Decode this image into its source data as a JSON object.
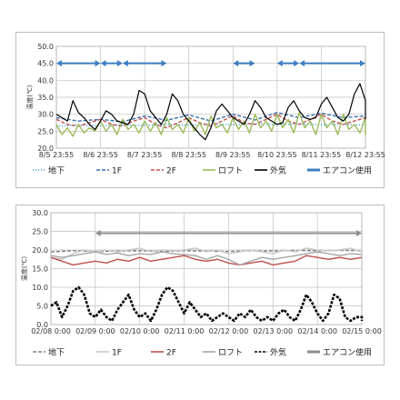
{
  "chart_data": [
    {
      "type": "line",
      "ylabel": "温度(℃)",
      "ylim": [
        20.0,
        50.0
      ],
      "yticks": [
        "50.0",
        "45.0",
        "40.0",
        "35.0",
        "30.0",
        "25.0",
        "20.0"
      ],
      "xticks": [
        "8/5 23:55",
        "8/6 23:55",
        "8/7 23:55",
        "8/8 23:55",
        "8/9 23:55",
        "8/10 23:55",
        "8/11 23:55",
        "8/12 23:55"
      ],
      "grid": true,
      "legend_position": "bottom",
      "legend": [
        "地下",
        "1F",
        "2F",
        "ロフト",
        "外気",
        "エアコン使用"
      ],
      "x_days_start": "8/5 23:55",
      "series": [
        {
          "name": "地下",
          "color": "#4aa8d8",
          "style": "dotted",
          "step_days": 0.5,
          "values": [
            26.5,
            26.8,
            26.6,
            26.9,
            26.7,
            27.0,
            26.8,
            27.1,
            26.9,
            27.2,
            27.0,
            27.1,
            26.9,
            27.0,
            26.8
          ]
        },
        {
          "name": "1F",
          "color": "#3a6fb0",
          "style": "dashed",
          "step_days": 0.5,
          "values": [
            29.0,
            28.0,
            28.5,
            27.8,
            29.5,
            28.2,
            29.8,
            28.0,
            30.0,
            28.3,
            30.5,
            29.0,
            30.3,
            29.0,
            29.5
          ]
        },
        {
          "name": "2F",
          "color": "#c0504d",
          "style": "dashed",
          "step_days": 0.25,
          "values": [
            28.5,
            27.0,
            26.5,
            27.5,
            28.5,
            27.0,
            26.5,
            28.0,
            29.0,
            27.0,
            26.0,
            27.5,
            29.0,
            27.5,
            26.5,
            28.0,
            29.5,
            27.5,
            27.0,
            28.5,
            30.0,
            28.0,
            27.0,
            28.5,
            30.0,
            28.0,
            27.0,
            28.0,
            29.0
          ]
        },
        {
          "name": "ロフト",
          "color": "#9bbb59",
          "style": "solid",
          "step_days": 0.125,
          "values": [
            27,
            24,
            26,
            23.5,
            27,
            24.5,
            26,
            25,
            28,
            25,
            27,
            24,
            28.5,
            25.5,
            27,
            24.5,
            28,
            25,
            27.5,
            24,
            29,
            25.5,
            27,
            24.5,
            29,
            25,
            27.5,
            24,
            29.5,
            26,
            27,
            24.5,
            29,
            25.5,
            28,
            24.5,
            30,
            26,
            28,
            25,
            30,
            26,
            28.5,
            24.5,
            30.5,
            26,
            28,
            24,
            30,
            26,
            28,
            24,
            30,
            25.5,
            27,
            24.5,
            29,
            24,
            26
          ]
        },
        {
          "name": "外気",
          "color": "#000000",
          "style": "solid",
          "step_days": 0.125,
          "values": [
            30,
            29,
            28,
            34,
            30.5,
            29,
            27,
            25.5,
            28,
            31,
            30,
            28,
            27.5,
            27,
            30,
            37,
            36,
            31,
            29,
            27,
            30,
            36,
            34,
            30,
            28,
            26,
            24,
            22.5,
            26,
            31,
            33,
            31,
            29,
            28,
            27,
            30,
            34,
            32,
            29,
            28,
            27,
            27.5,
            32,
            34,
            31,
            29,
            28.5,
            29,
            33,
            35,
            32,
            29,
            28,
            30,
            36,
            39,
            34,
            31,
            28.5
          ]
        }
      ],
      "aircon_segments": [
        [
          "8/5 23:55",
          "8/6 23:55"
        ],
        [
          "8/6 23:55",
          "8/7 11:55"
        ],
        [
          "8/7 11:55",
          "8/8 11:55"
        ],
        [
          "8/9 23:55",
          "8/10 11:55"
        ],
        [
          "8/10 23:55",
          "8/11 11:55"
        ],
        [
          "8/11 11:55",
          "8/13 00:00"
        ]
      ],
      "aircon_color": "#3c7fc0",
      "aircon_level": 45
    },
    {
      "type": "line",
      "ylabel": "温度(℃)",
      "ylim": [
        0.0,
        30.0
      ],
      "yticks": [
        "30.0",
        "25.0",
        "20.0",
        "15.0",
        "10.0",
        "5.0",
        "0.0"
      ],
      "xticks": [
        "02/08 0:00",
        "02/09 0:00",
        "02/10 0:00",
        "02/11 0:00",
        "02/12 0:00",
        "02/13 0:00",
        "02/14 0:00",
        "02/15 0:00"
      ],
      "grid": true,
      "legend_position": "bottom",
      "legend": [
        "地下",
        "1F",
        "2F",
        "ロフト",
        "外気",
        "エアコン使用"
      ],
      "series": [
        {
          "name": "地下",
          "color": "#808080",
          "style": "dashed",
          "step_days": 0.5,
          "values": [
            19.5,
            19.8,
            19.6,
            19.7,
            19.8,
            19.6,
            19.8,
            19.7,
            19.6,
            19.8,
            19.7,
            19.9,
            19.8,
            19.9,
            19.8
          ]
        },
        {
          "name": "1F",
          "color": "#c8c8c8",
          "style": "solid",
          "step_days": 0.25,
          "values": [
            18,
            17.5,
            19,
            20,
            19.5,
            20,
            19.5,
            20,
            20.5,
            19.5,
            20,
            19.8,
            20,
            20.5,
            19.5,
            20,
            19,
            19.5,
            20,
            19.5,
            19,
            20,
            19.5,
            20.5,
            20,
            19.8,
            20,
            20.5,
            19.5
          ]
        },
        {
          "name": "2F",
          "color": "#c0504d",
          "style": "solid",
          "step_days": 0.25,
          "values": [
            18,
            17,
            16,
            16.5,
            17,
            16.5,
            17.5,
            17,
            18,
            17,
            17.5,
            18,
            18.5,
            17.5,
            17,
            17.5,
            16.5,
            16,
            16.5,
            17,
            16,
            16.5,
            17,
            18.5,
            18,
            17.5,
            18,
            17.5,
            18
          ]
        },
        {
          "name": "ロフト",
          "color": "#a6a6a6",
          "style": "solid",
          "step_days": 0.25,
          "values": [
            18.5,
            18,
            18.5,
            19,
            19.5,
            18.8,
            19.2,
            18.5,
            19,
            18.8,
            19.5,
            19,
            18.8,
            18.5,
            17.5,
            18.5,
            17.5,
            16,
            17,
            18,
            17.5,
            18,
            18.5,
            19,
            19.5,
            19,
            18.5,
            19,
            18.8
          ]
        },
        {
          "name": "外気",
          "color": "#000000",
          "style": "dashdot",
          "step_days": 0.125,
          "values": [
            5,
            6,
            2,
            5,
            9,
            10,
            8,
            3,
            2,
            4,
            2,
            1,
            4,
            6,
            8,
            4,
            2,
            3,
            1,
            4,
            8,
            10,
            9,
            6,
            3,
            6,
            4,
            2,
            3,
            1,
            2,
            3,
            2,
            1,
            3,
            2,
            4,
            2,
            1,
            2,
            1,
            3,
            4,
            2,
            1,
            4,
            8,
            6,
            3,
            1,
            3,
            8,
            7,
            2,
            1,
            2,
            2,
            1,
            1
          ]
        }
      ],
      "aircon_segments": [
        [
          "02/09 0:00",
          "02/15 0:00"
        ]
      ],
      "aircon_color": "#8c8c8c",
      "aircon_level": 24.5
    }
  ]
}
